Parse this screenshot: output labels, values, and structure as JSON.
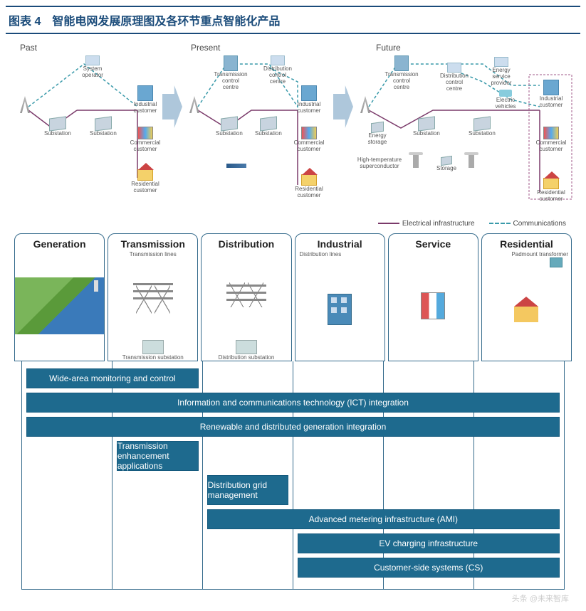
{
  "title": "图表 4　智能电网发展原理图及各环节重点智能化产品",
  "credit": "头条 @未来智库",
  "colors": {
    "title_border": "#1a4b7a",
    "title_text": "#1a4b7a",
    "bar_fill": "#1e6a8e",
    "bar_border": "#155a7e",
    "col_border": "#356b8c",
    "electrical_line": "#7a3a6a",
    "communications_line": "#3a9aaa",
    "arrow_fill": "#aec7db"
  },
  "evolution": {
    "eras": {
      "past": "Past",
      "present": "Present",
      "future": "Future"
    },
    "legend": {
      "electrical": "Electrical infrastructure",
      "communications": "Communications"
    },
    "past_nodes": {
      "system_operator": "System operator",
      "substation1": "Substation",
      "substation2": "Substation",
      "industrial": "Industrial customer",
      "commercial": "Commercial customer",
      "residential": "Residential customer"
    },
    "present_nodes": {
      "trans_cc": "Transmission control centre",
      "dist_cc": "Distribution control centre",
      "substation1": "Substation",
      "substation2": "Substation",
      "industrial": "Industrial customer",
      "commercial": "Commercial customer",
      "residential": "Residential customer"
    },
    "future_nodes": {
      "trans_cc": "Transmission control centre",
      "dist_cc": "Distribution control centre",
      "energy_sp": "Energy service provider",
      "ev": "Electric vehicles",
      "energy_storage": "Energy storage",
      "substation1": "Substation",
      "substation2": "Substation",
      "htsc": "High-temperature superconductor",
      "storage": "Storage",
      "industrial": "Industrial customer",
      "commercial": "Commercial customer",
      "residential": "Residential customer"
    }
  },
  "grid": {
    "columns": [
      {
        "title": "Generation",
        "sub": ""
      },
      {
        "title": "Transmission",
        "sub": "Transmission lines",
        "sub2": "Transmission substation"
      },
      {
        "title": "Distribution",
        "sub": "",
        "sub2": "Distribution substation"
      },
      {
        "title": "Industrial",
        "sub": "Distribution lines"
      },
      {
        "title": "Service",
        "sub": ""
      },
      {
        "title": "Residential",
        "sub": "Padmount transformer"
      }
    ],
    "bars": [
      {
        "label": "Wide-area monitoring and control",
        "start": 0,
        "end": 2,
        "tall": false
      },
      {
        "label": "Information and communications technology (ICT) integration",
        "start": 0,
        "end": 6,
        "tall": false
      },
      {
        "label": "Renewable and distributed generation integration",
        "start": 0,
        "end": 6,
        "tall": false
      },
      {
        "label": "Transmission enhancement applications",
        "start": 1,
        "end": 2,
        "tall": true
      },
      {
        "label": "Distribution grid management",
        "start": 2,
        "end": 3,
        "tall": true
      },
      {
        "label": "Advanced metering infrastructure (AMI)",
        "start": 2,
        "end": 6,
        "tall": false
      },
      {
        "label": "EV charging infrastructure",
        "start": 3,
        "end": 6,
        "tall": false
      },
      {
        "label": "Customer-side systems (CS)",
        "start": 3,
        "end": 6,
        "tall": false
      }
    ]
  }
}
